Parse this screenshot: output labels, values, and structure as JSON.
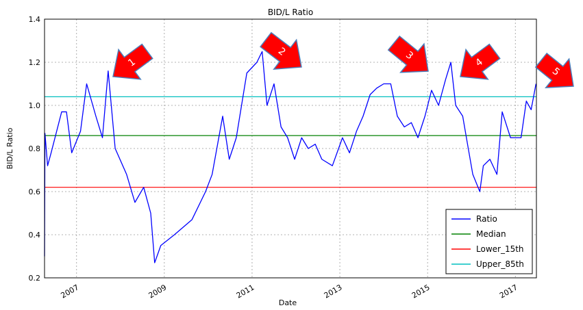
{
  "chart_data": {
    "type": "line",
    "title": "BID/L Ratio",
    "xlabel": "Date",
    "ylabel": "BID/L Ratio",
    "x": [
      2006.27,
      2006.28,
      2006.34,
      2006.42,
      2006.66,
      2006.77,
      2006.89,
      2007.09,
      2007.23,
      2007.44,
      2007.59,
      2007.72,
      2007.88,
      2008.14,
      2008.33,
      2008.53,
      2008.69,
      2008.78,
      2008.92,
      2009.23,
      2009.63,
      2009.94,
      2010.09,
      2010.33,
      2010.48,
      2010.64,
      2010.88,
      2011.11,
      2011.23,
      2011.34,
      2011.5,
      2011.66,
      2011.81,
      2011.97,
      2012.13,
      2012.28,
      2012.44,
      2012.59,
      2012.83,
      2013.06,
      2013.22,
      2013.38,
      2013.53,
      2013.69,
      2013.84,
      2014.0,
      2014.16,
      2014.31,
      2014.47,
      2014.63,
      2014.78,
      2014.94,
      2015.09,
      2015.25,
      2015.41,
      2015.53,
      2015.64,
      2015.8,
      2015.91,
      2016.03,
      2016.19,
      2016.27,
      2016.42,
      2016.58,
      2016.7,
      2016.89,
      2017.13,
      2017.25,
      2017.36,
      2017.47
    ],
    "series": [
      {
        "name": "Ratio",
        "color": "#0000ff",
        "values": [
          0.3,
          0.87,
          0.72,
          0.78,
          0.97,
          0.97,
          0.78,
          0.88,
          1.1,
          0.95,
          0.85,
          1.16,
          0.8,
          0.68,
          0.55,
          0.62,
          0.5,
          0.27,
          0.35,
          0.4,
          0.47,
          0.6,
          0.68,
          0.95,
          0.75,
          0.85,
          1.15,
          1.2,
          1.25,
          1.0,
          1.1,
          0.9,
          0.85,
          0.75,
          0.85,
          0.8,
          0.82,
          0.75,
          0.72,
          0.85,
          0.78,
          0.88,
          0.95,
          1.05,
          1.08,
          1.1,
          1.1,
          0.95,
          0.9,
          0.92,
          0.85,
          0.95,
          1.07,
          1.0,
          1.12,
          1.2,
          1.0,
          0.95,
          0.82,
          0.68,
          0.6,
          0.72,
          0.75,
          0.68,
          0.97,
          0.85,
          0.85,
          1.02,
          0.98,
          1.1
        ]
      }
    ],
    "hlines": [
      {
        "name": "Median",
        "color": "#008000",
        "value": 0.86
      },
      {
        "name": "Lower_15th",
        "color": "#ff0000",
        "value": 0.62
      },
      {
        "name": "Upper_85th",
        "color": "#00bfbf",
        "value": 1.04
      }
    ],
    "xlim": [
      2006.27,
      2017.48
    ],
    "xticks": [
      2007,
      2009,
      2011,
      2013,
      2015,
      2017
    ],
    "ylim": [
      0.2,
      1.4
    ],
    "yticks": [
      0.2,
      0.4,
      0.6,
      0.8,
      {
        "value": 1,
        "label": "1.0"
      },
      1.2,
      1.4
    ],
    "grid": true,
    "legend": "lower right",
    "annotations": [
      "1",
      "2",
      "3",
      "4",
      "5"
    ]
  }
}
